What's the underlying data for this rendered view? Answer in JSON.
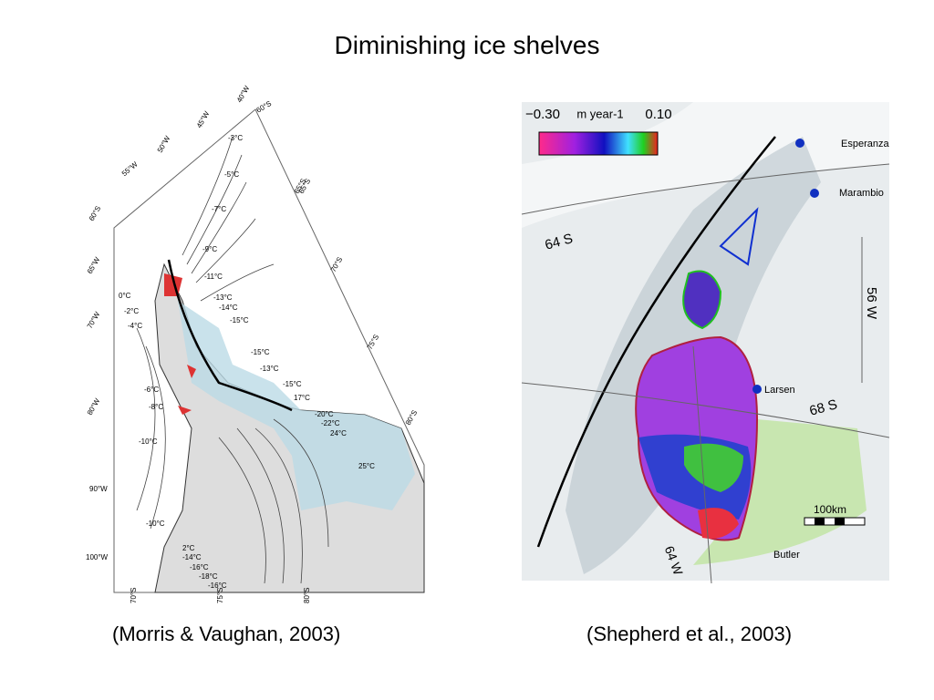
{
  "slide": {
    "title": "Diminishing ice shelves",
    "left_caption": "(Morris & Vaughan, 2003)",
    "right_caption": "(Shepherd et al., 2003)"
  },
  "left_map": {
    "labels": [
      "40°W",
      "60°S",
      "45°W",
      "50°W",
      "55°W",
      "60°S",
      "65°W",
      "70°W",
      "65°S",
      "80°W",
      "90°W",
      "100°W",
      "65°S",
      "70°S",
      "75°S",
      "80°S",
      "70°S",
      "75°S",
      "80°S",
      "-3°C",
      "-5°C",
      "-7°C",
      "-9°C",
      "-11°C",
      "0°C",
      "-2°C",
      "-4°C",
      "-13°C",
      "-14°C",
      "-15°C",
      "-15°C",
      "-13°C",
      "-15°C",
      "17°C",
      "-20°C",
      "-22°C",
      "24°C",
      "-6°C",
      "-8°C",
      "-10°C",
      "-10°C",
      "25°C",
      "2°C",
      "-14°C",
      "-16°C",
      "-18°C",
      "-16°C"
    ]
  },
  "right_map": {
    "scale_min": "−0.30",
    "scale_unit": "m year-1",
    "scale_max": "0.10",
    "labels": [
      "Esperanza",
      "Marambio",
      "64 S",
      "56 W",
      "Larsen",
      "68 S",
      "100km",
      "64 W",
      "Butler"
    ]
  }
}
